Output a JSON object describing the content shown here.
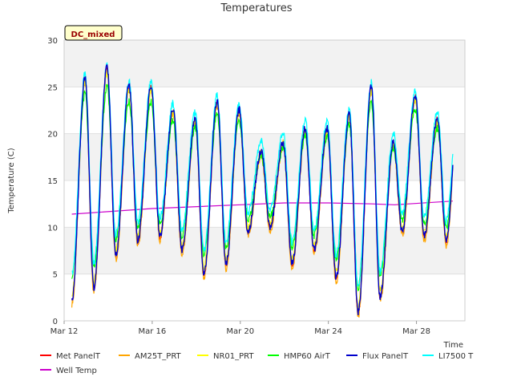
{
  "chart_data": {
    "type": "line",
    "title": "Temperatures",
    "xlabel": "Time",
    "ylabel": "Temperature (C)",
    "annotation": "DC_mixed",
    "xlim": [
      0,
      18.2
    ],
    "ylim": [
      0,
      30
    ],
    "yticks": [
      0,
      5,
      10,
      15,
      20,
      25,
      30
    ],
    "xticks": [
      {
        "label": "Mar 12",
        "value": 0
      },
      {
        "label": "Mar 16",
        "value": 4
      },
      {
        "label": "Mar 20",
        "value": 8
      },
      {
        "label": "Mar 24",
        "value": 12
      },
      {
        "label": "Mar 28",
        "value": 16
      }
    ],
    "grid_bands": true,
    "legend_position": "bottom",
    "diurnal": {
      "x_start": 0.35,
      "x_end": 17.65,
      "peak_hour_fraction": 0.6,
      "days": [
        {
          "min": 2.2,
          "max": 26.0
        },
        {
          "min": 3.5,
          "max": 27.0
        },
        {
          "min": 7.0,
          "max": 25.0
        },
        {
          "min": 8.5,
          "max": 25.0
        },
        {
          "min": 9.0,
          "max": 22.5
        },
        {
          "min": 7.5,
          "max": 21.5
        },
        {
          "min": 5.0,
          "max": 23.5
        },
        {
          "min": 6.0,
          "max": 22.5
        },
        {
          "min": 9.5,
          "max": 18.0
        },
        {
          "min": 10.0,
          "max": 19.0
        },
        {
          "min": 6.0,
          "max": 20.5
        },
        {
          "min": 7.5,
          "max": 20.5
        },
        {
          "min": 4.5,
          "max": 22.0
        },
        {
          "min": 0.8,
          "max": 25.0
        },
        {
          "min": 2.5,
          "max": 19.0
        },
        {
          "min": 9.5,
          "max": 24.0
        },
        {
          "min": 9.0,
          "max": 21.5
        },
        {
          "min": 8.5,
          "max": 25.0
        }
      ]
    },
    "series": [
      {
        "name": "Met PanelT",
        "color": "#ff0000",
        "offset": 0.0,
        "amp": 1.0
      },
      {
        "name": "AM25T_PRT",
        "color": "#ffa500",
        "offset": -0.4,
        "amp": 1.0
      },
      {
        "name": "NR01_PRT",
        "color": "#ffff00",
        "offset": 0.3,
        "amp": 0.95
      },
      {
        "name": "HMP60 AirT",
        "color": "#00ff00",
        "offset": 0.8,
        "amp": 0.82
      },
      {
        "name": "Flux PanelT",
        "color": "#0000cc",
        "offset": 0.1,
        "amp": 1.0
      },
      {
        "name": "LI7500 T",
        "color": "#00ffff",
        "offset": 1.8,
        "amp": 0.9
      },
      {
        "name": "Well Temp",
        "color": "#cc00cc",
        "x": [
          0.35,
          4,
          8,
          10,
          12,
          14,
          15,
          17.65
        ],
        "values": [
          11.4,
          12.0,
          12.4,
          12.6,
          12.6,
          12.5,
          12.4,
          12.8
        ]
      }
    ]
  }
}
